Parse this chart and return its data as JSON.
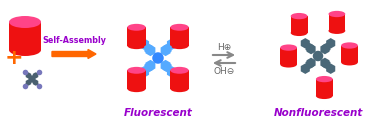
{
  "bg_color": "#ffffff",
  "self_assembly_text": "Self-Assembly",
  "self_assembly_color": "#9900cc",
  "arrow_color": "#ff6600",
  "fluorescent_text": "Fluorescent",
  "fluorescent_color": "#9900cc",
  "nonfluorescent_text": "Nonfluorescent",
  "nonfluorescent_color": "#9900cc",
  "h_plus_text": "H⊕",
  "oh_minus_text": "OH⊖",
  "pillar_body_color": "#ee1111",
  "pillar_top_color": "#ff6666",
  "pillar_pink_color": "#ff4488",
  "tpe_blue_color": "#3388ff",
  "tpe_blue_light": "#55aaff",
  "molecule_node_color": "#4a6070",
  "molecule_end_color": "#7777bb",
  "nonfluor_node_color": "#4a6878",
  "plus_color": "#ff6600",
  "eq_arrow_color": "#888888",
  "eq_text_color": "#666666"
}
